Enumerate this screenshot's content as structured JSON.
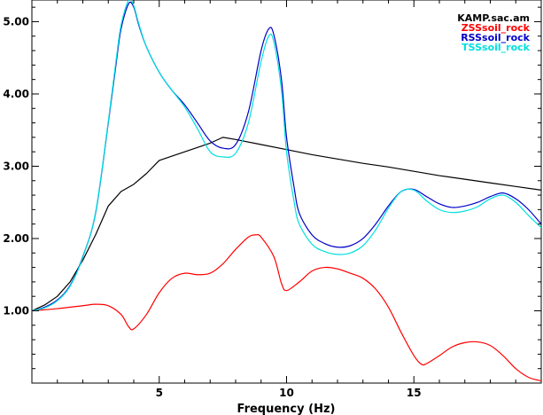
{
  "chart_data": {
    "type": "line",
    "title": "",
    "xlabel": "Frequency (Hz)",
    "ylabel": "",
    "xlim": [
      0.0,
      20.0
    ],
    "ylim": [
      0.0,
      5.3
    ],
    "grid": false,
    "legend_position": "top-right",
    "x_ticks": [
      5,
      10,
      15
    ],
    "y_ticks": [
      1.0,
      2.0,
      3.0,
      4.0,
      5.0
    ],
    "x_tick_labels": [
      "5",
      "10",
      "15"
    ],
    "y_tick_labels": [
      "1.00",
      "2.00",
      "3.00",
      "4.00",
      "5.00"
    ],
    "legend_title": "KAMP.sac.am",
    "series": [
      {
        "name": "",
        "color": "#000000",
        "x": [
          0.0,
          0.5,
          1.0,
          1.5,
          2.0,
          2.5,
          3.0,
          3.5,
          4.0,
          4.5,
          5.0,
          6.0,
          7.0,
          7.5,
          8.0,
          9.0,
          10.0,
          11.0,
          12.0,
          13.0,
          14.0,
          15.0,
          16.0,
          17.0,
          18.0,
          19.0,
          20.0
        ],
        "values": [
          1.0,
          1.08,
          1.2,
          1.4,
          1.7,
          2.05,
          2.45,
          2.65,
          2.75,
          2.9,
          3.08,
          3.2,
          3.32,
          3.4,
          3.37,
          3.3,
          3.23,
          3.16,
          3.1,
          3.04,
          2.99,
          2.93,
          2.87,
          2.82,
          2.77,
          2.72,
          2.67
        ]
      },
      {
        "name": "ZSSsoil_rock",
        "color": "#ff0000",
        "x": [
          0.0,
          1.0,
          2.0,
          2.5,
          3.0,
          3.5,
          3.8,
          4.0,
          4.5,
          5.0,
          5.5,
          6.0,
          6.5,
          7.0,
          7.5,
          8.0,
          8.5,
          8.8,
          9.0,
          9.5,
          9.8,
          10.0,
          10.5,
          11.0,
          11.5,
          12.0,
          12.5,
          13.0,
          13.5,
          14.0,
          14.5,
          15.0,
          15.3,
          15.5,
          16.0,
          16.5,
          17.0,
          17.5,
          18.0,
          18.5,
          19.0,
          19.5,
          20.0
        ],
        "values": [
          1.0,
          1.03,
          1.07,
          1.09,
          1.07,
          0.95,
          0.78,
          0.75,
          0.95,
          1.25,
          1.45,
          1.52,
          1.5,
          1.52,
          1.65,
          1.85,
          2.02,
          2.05,
          2.02,
          1.75,
          1.38,
          1.28,
          1.4,
          1.55,
          1.6,
          1.58,
          1.52,
          1.45,
          1.3,
          1.05,
          0.7,
          0.38,
          0.26,
          0.27,
          0.38,
          0.5,
          0.56,
          0.57,
          0.52,
          0.38,
          0.2,
          0.08,
          0.03
        ]
      },
      {
        "name": "RSSsoil_rock",
        "color": "#0000c8",
        "x": [
          0.0,
          0.5,
          1.0,
          1.5,
          2.0,
          2.5,
          3.0,
          3.3,
          3.5,
          3.8,
          4.0,
          4.2,
          4.5,
          5.0,
          5.5,
          6.0,
          6.5,
          7.0,
          7.5,
          8.0,
          8.5,
          9.0,
          9.3,
          9.5,
          9.8,
          10.0,
          10.3,
          10.5,
          11.0,
          11.5,
          12.0,
          12.5,
          13.0,
          13.5,
          14.0,
          14.5,
          15.0,
          15.5,
          16.0,
          16.5,
          17.0,
          17.5,
          18.0,
          18.5,
          19.0,
          19.5,
          20.0
        ],
        "values": [
          1.0,
          1.05,
          1.15,
          1.35,
          1.75,
          2.35,
          3.6,
          4.4,
          4.9,
          5.25,
          5.2,
          4.95,
          4.65,
          4.3,
          4.05,
          3.85,
          3.6,
          3.35,
          3.25,
          3.3,
          3.75,
          4.6,
          4.9,
          4.82,
          4.2,
          3.4,
          2.7,
          2.35,
          2.05,
          1.93,
          1.88,
          1.9,
          2.0,
          2.2,
          2.45,
          2.65,
          2.68,
          2.58,
          2.48,
          2.43,
          2.45,
          2.5,
          2.58,
          2.63,
          2.55,
          2.4,
          2.2
        ]
      },
      {
        "name": "TSSsoil_rock",
        "color": "#00e0e0",
        "x": [
          0.0,
          0.5,
          1.0,
          1.5,
          2.0,
          2.5,
          3.0,
          3.3,
          3.5,
          3.8,
          4.0,
          4.2,
          4.5,
          5.0,
          5.5,
          6.0,
          6.5,
          7.0,
          7.5,
          8.0,
          8.5,
          9.0,
          9.3,
          9.5,
          9.8,
          10.0,
          10.3,
          10.5,
          11.0,
          11.5,
          12.0,
          12.5,
          13.0,
          13.5,
          14.0,
          14.5,
          15.0,
          15.5,
          16.0,
          16.5,
          17.0,
          17.5,
          18.0,
          18.5,
          19.0,
          19.5,
          20.0
        ],
        "values": [
          1.0,
          1.04,
          1.14,
          1.34,
          1.74,
          2.36,
          3.62,
          4.45,
          4.95,
          5.3,
          5.22,
          4.97,
          4.65,
          4.3,
          4.05,
          3.82,
          3.52,
          3.2,
          3.13,
          3.18,
          3.6,
          4.45,
          4.8,
          4.72,
          4.05,
          3.2,
          2.5,
          2.2,
          1.92,
          1.82,
          1.78,
          1.8,
          1.9,
          2.12,
          2.42,
          2.65,
          2.67,
          2.52,
          2.4,
          2.36,
          2.38,
          2.44,
          2.55,
          2.6,
          2.5,
          2.32,
          2.15
        ]
      }
    ]
  }
}
